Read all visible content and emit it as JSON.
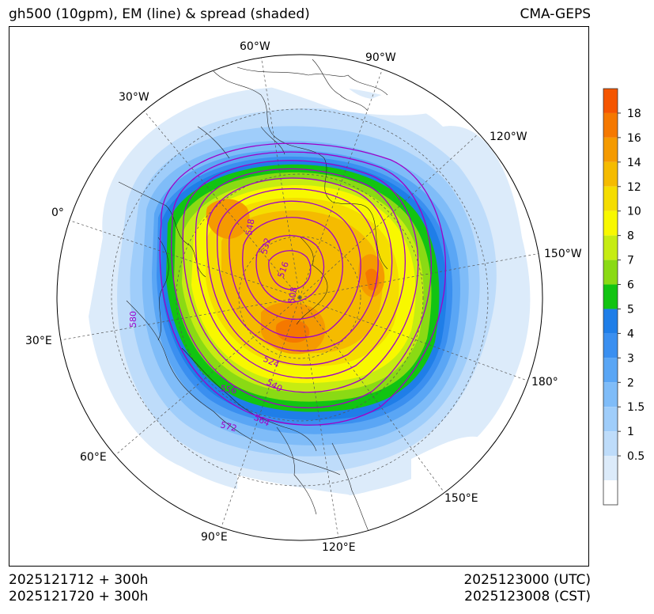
{
  "header": {
    "title": "gh500 (10gpm), EM (line) & spread (shaded)",
    "model": "CMA-GEPS"
  },
  "footer": {
    "init_utc": "2025121712 + 300h",
    "init_cst": "2025121720 + 300h",
    "valid_utc": "2025123000 (UTC)",
    "valid_cst": "2025123008 (CST)"
  },
  "map": {
    "projection": "north polar stereographic",
    "longitude_labels": [
      "60°W",
      "90°W",
      "30°W",
      "120°W",
      "0°",
      "150°W",
      "30°E",
      "180°",
      "60°E",
      "150°E",
      "90°E",
      "120°E"
    ],
    "contour_labels": [
      "548",
      "532",
      "516",
      "508",
      "580",
      "524",
      "540",
      "556",
      "564",
      "572"
    ]
  },
  "colorbar": {
    "levels": [
      "0.5",
      "1",
      "1.5",
      "2",
      "3",
      "4",
      "5",
      "6",
      "7",
      "8",
      "10",
      "12",
      "14",
      "16",
      "18"
    ],
    "colors": [
      "#ffffff",
      "#dcebfa",
      "#bedcfa",
      "#9fcdfa",
      "#7fbcf8",
      "#5aa6f5",
      "#3a8ff0",
      "#1f7ee8",
      "#12c412",
      "#8ada14",
      "#c6ec12",
      "#f8f800",
      "#f5dd00",
      "#f5bb00",
      "#f59a00",
      "#f57800",
      "#f55500"
    ]
  },
  "colors": {
    "contour": "#a000c8",
    "coast": "#222222"
  }
}
